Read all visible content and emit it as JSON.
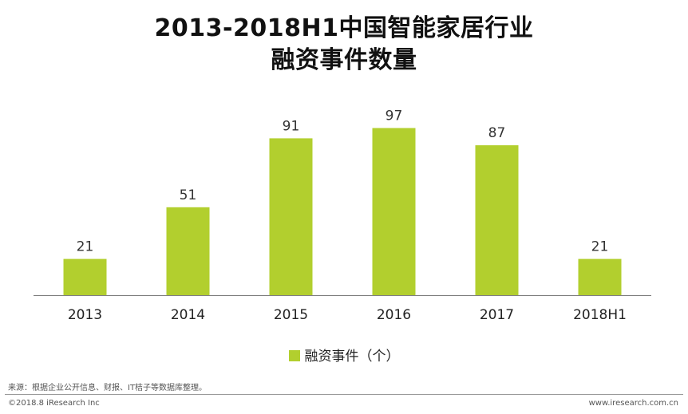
{
  "title_line1": "2013-2018H1中国智能家居行业",
  "title_line2": "融资事件数量",
  "legend_label": "融资事件（个）",
  "source": "来源：根据企业公开信息、财报、IT桔子等数据库整理。",
  "copyright": "©2018.8 iResearch Inc",
  "website": "www.iresearch.com.cn",
  "colors": {
    "bar": "#b2cf2e",
    "axis": "#7f7f7f"
  },
  "chart_data": {
    "type": "bar",
    "title": "2013-2018H1中国智能家居行业融资事件数量",
    "categories": [
      "2013",
      "2014",
      "2015",
      "2016",
      "2017",
      "2018H1"
    ],
    "series": [
      {
        "name": "融资事件（个）",
        "values": [
          21,
          51,
          91,
          97,
          87,
          21
        ]
      }
    ],
    "xlabel": "",
    "ylabel": "",
    "ylim": [
      0,
      100
    ],
    "grid": false,
    "legend": "bottom-center"
  }
}
